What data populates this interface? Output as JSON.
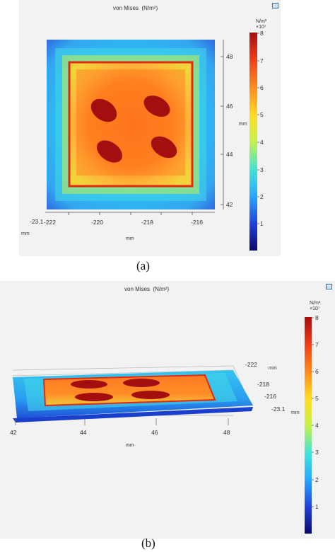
{
  "panel_a": {
    "title": "von Mises",
    "title_unit": "(N/m²)",
    "colorbar_unit": "N/m²",
    "colorbar_multiplier": "×10⁷",
    "colorbar_ticks": [
      "8",
      "7",
      "6",
      "5",
      "4",
      "3",
      "2",
      "1"
    ],
    "x_ticks": [
      "-222",
      "-220",
      "-218",
      "-216"
    ],
    "y_ticks": [
      "48",
      "46",
      "44",
      "42"
    ],
    "z_tick": "-23.1",
    "x_unit": "mm",
    "y_unit": "mm",
    "z_unit": "mm",
    "caption": "(a)"
  },
  "panel_b": {
    "title": "von Mises",
    "title_unit": "(N/m²)",
    "colorbar_unit": "N/m²",
    "colorbar_multiplier": "×10⁷",
    "colorbar_ticks": [
      "8",
      "7",
      "6",
      "5",
      "4",
      "3",
      "2",
      "1"
    ],
    "x_ticks": [
      "42",
      "44",
      "46",
      "48"
    ],
    "y_ticks": [
      "-222",
      "-218",
      "-216",
      "-23.1"
    ],
    "x_unit": "mm",
    "y_unit": "mm",
    "z_unit": "mm",
    "caption": "(b)"
  },
  "colors": {
    "colormap": [
      "#0a0a6a",
      "#1f3fd9",
      "#27a8ff",
      "#41e3d8",
      "#c6f04a",
      "#ffdd22",
      "#ff8a1e",
      "#ef3b18",
      "#a50e0e"
    ],
    "background": "#f2f2f2"
  }
}
